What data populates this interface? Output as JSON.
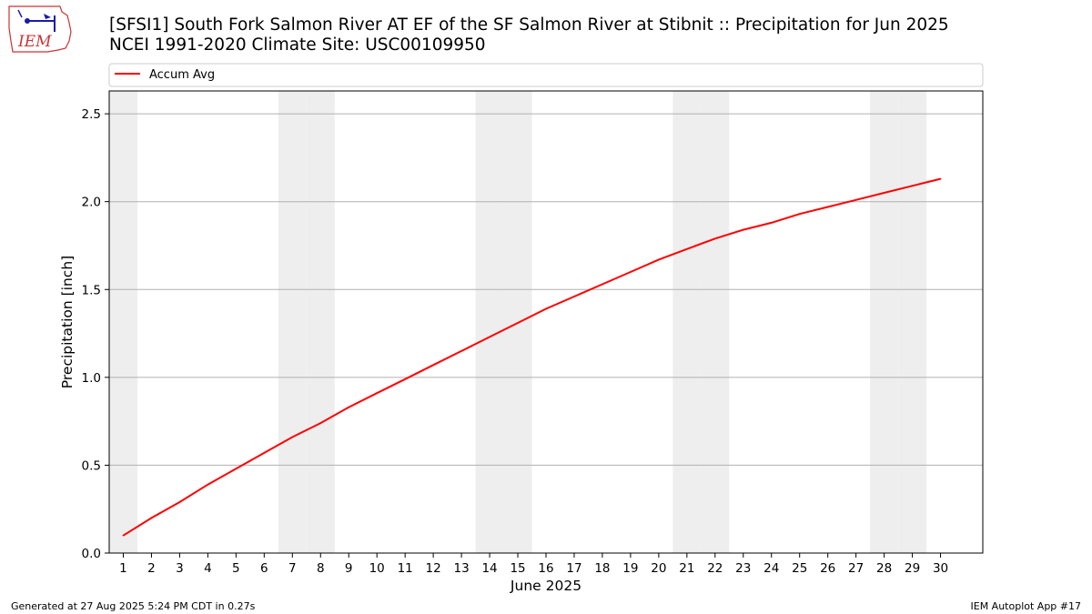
{
  "title_line1": "[SFSI1] South Fork Salmon River  AT EF of the SF Salmon River at Stibnit :: Precipitation for Jun 2025",
  "title_line2": "NCEI 1991-2020 Climate Site: USC00109950",
  "footer_left": "Generated at 27 Aug 2025 5:24 PM CDT in 0.27s",
  "footer_right": "IEM Autoplot App #17",
  "logo_text": "IEM",
  "colors": {
    "line": "#ff0000",
    "weekend": "#eeeeee",
    "grid": "#b0b0b0"
  },
  "chart_data": {
    "type": "line",
    "title": "[SFSI1] South Fork Salmon River  AT EF of the SF Salmon River at Stibnit :: Precipitation for Jun 2025",
    "subtitle": "NCEI 1991-2020 Climate Site: USC00109950",
    "xlabel": "June 2025",
    "ylabel": "Precipitation [inch]",
    "xlim": [
      0.5,
      31.5
    ],
    "ylim": [
      0,
      2.63
    ],
    "grid": true,
    "legend_placement": "top-left",
    "x_ticks": [
      1,
      2,
      3,
      4,
      5,
      6,
      7,
      8,
      9,
      10,
      11,
      12,
      13,
      14,
      15,
      16,
      17,
      18,
      19,
      20,
      21,
      22,
      23,
      24,
      25,
      26,
      27,
      28,
      29,
      30
    ],
    "y_ticks": [
      0.0,
      0.5,
      1.0,
      1.5,
      2.0,
      2.5
    ],
    "y_tick_labels": [
      "0.0",
      "0.5",
      "1.0",
      "1.5",
      "2.0",
      "2.5"
    ],
    "weekend_days": [
      1,
      7,
      8,
      14,
      15,
      21,
      22,
      28,
      29
    ],
    "series": [
      {
        "name": "Accum Avg",
        "x": [
          1,
          2,
          3,
          4,
          5,
          6,
          7,
          8,
          9,
          10,
          11,
          12,
          13,
          14,
          15,
          16,
          17,
          18,
          19,
          20,
          21,
          22,
          23,
          24,
          25,
          26,
          27,
          28,
          29,
          30
        ],
        "values": [
          0.1,
          0.2,
          0.29,
          0.39,
          0.48,
          0.57,
          0.66,
          0.74,
          0.83,
          0.91,
          0.99,
          1.07,
          1.15,
          1.23,
          1.31,
          1.39,
          1.46,
          1.53,
          1.6,
          1.67,
          1.73,
          1.79,
          1.84,
          1.88,
          1.93,
          1.97,
          2.01,
          2.05,
          2.09,
          2.13
        ]
      }
    ]
  }
}
